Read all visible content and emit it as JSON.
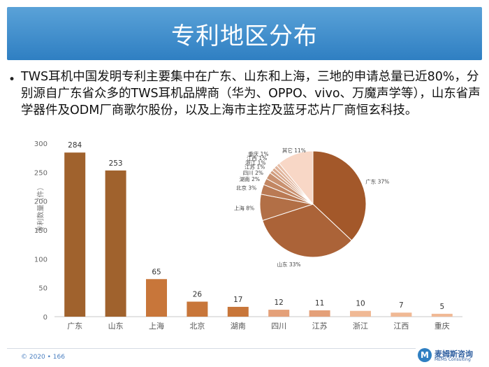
{
  "slide": {
    "title": "专利地区分布",
    "bullet": "TWS耳机中国发明专利主要集中在广东、山东和上海，三地的申请总量已近80%，分别源自广东省众多的TWS耳机品牌商（华为、OPPO、vivo、万魔声学等），山东省声学器件及ODM厂商歌尔股份，以及上海市主控及蓝牙芯片厂商恒玄科技。"
  },
  "footer": {
    "copyright": "© 2020 • 166",
    "logo_mark": "M",
    "logo_name": "麦姆斯咨询",
    "logo_sub": "MEMS Consulting"
  },
  "colors": {
    "banner": "#3b8bcc",
    "bar_dark": "#a0622d",
    "bar_mid": "#c8763a",
    "bar_light": "#f0b995",
    "pie_dark": "#a3582a",
    "pie_light": "#f8d7c6"
  },
  "chart_data": [
    {
      "type": "bar",
      "title": "",
      "xlabel": "",
      "ylabel": "专利数量（件）",
      "ylim": [
        0,
        300
      ],
      "yticks": [
        0,
        50,
        100,
        150,
        200,
        250,
        300
      ],
      "categories": [
        "广东",
        "山东",
        "上海",
        "北京",
        "湖南",
        "四川",
        "江苏",
        "浙江",
        "江西",
        "重庆"
      ],
      "values": [
        284,
        253,
        65,
        26,
        17,
        12,
        11,
        10,
        7,
        5
      ],
      "grid": false
    },
    {
      "type": "pie",
      "labels": [
        "广东 37%",
        "山东 33%",
        "上海 8%",
        "北京 3%",
        "湖南 2%",
        "四川 2%",
        "江苏 1%",
        "浙江 1%",
        "江西 1%",
        "重庆 1%",
        "其它 11%"
      ],
      "values": [
        37,
        33,
        8,
        3,
        2,
        2,
        1,
        1,
        1,
        1,
        11
      ]
    }
  ]
}
